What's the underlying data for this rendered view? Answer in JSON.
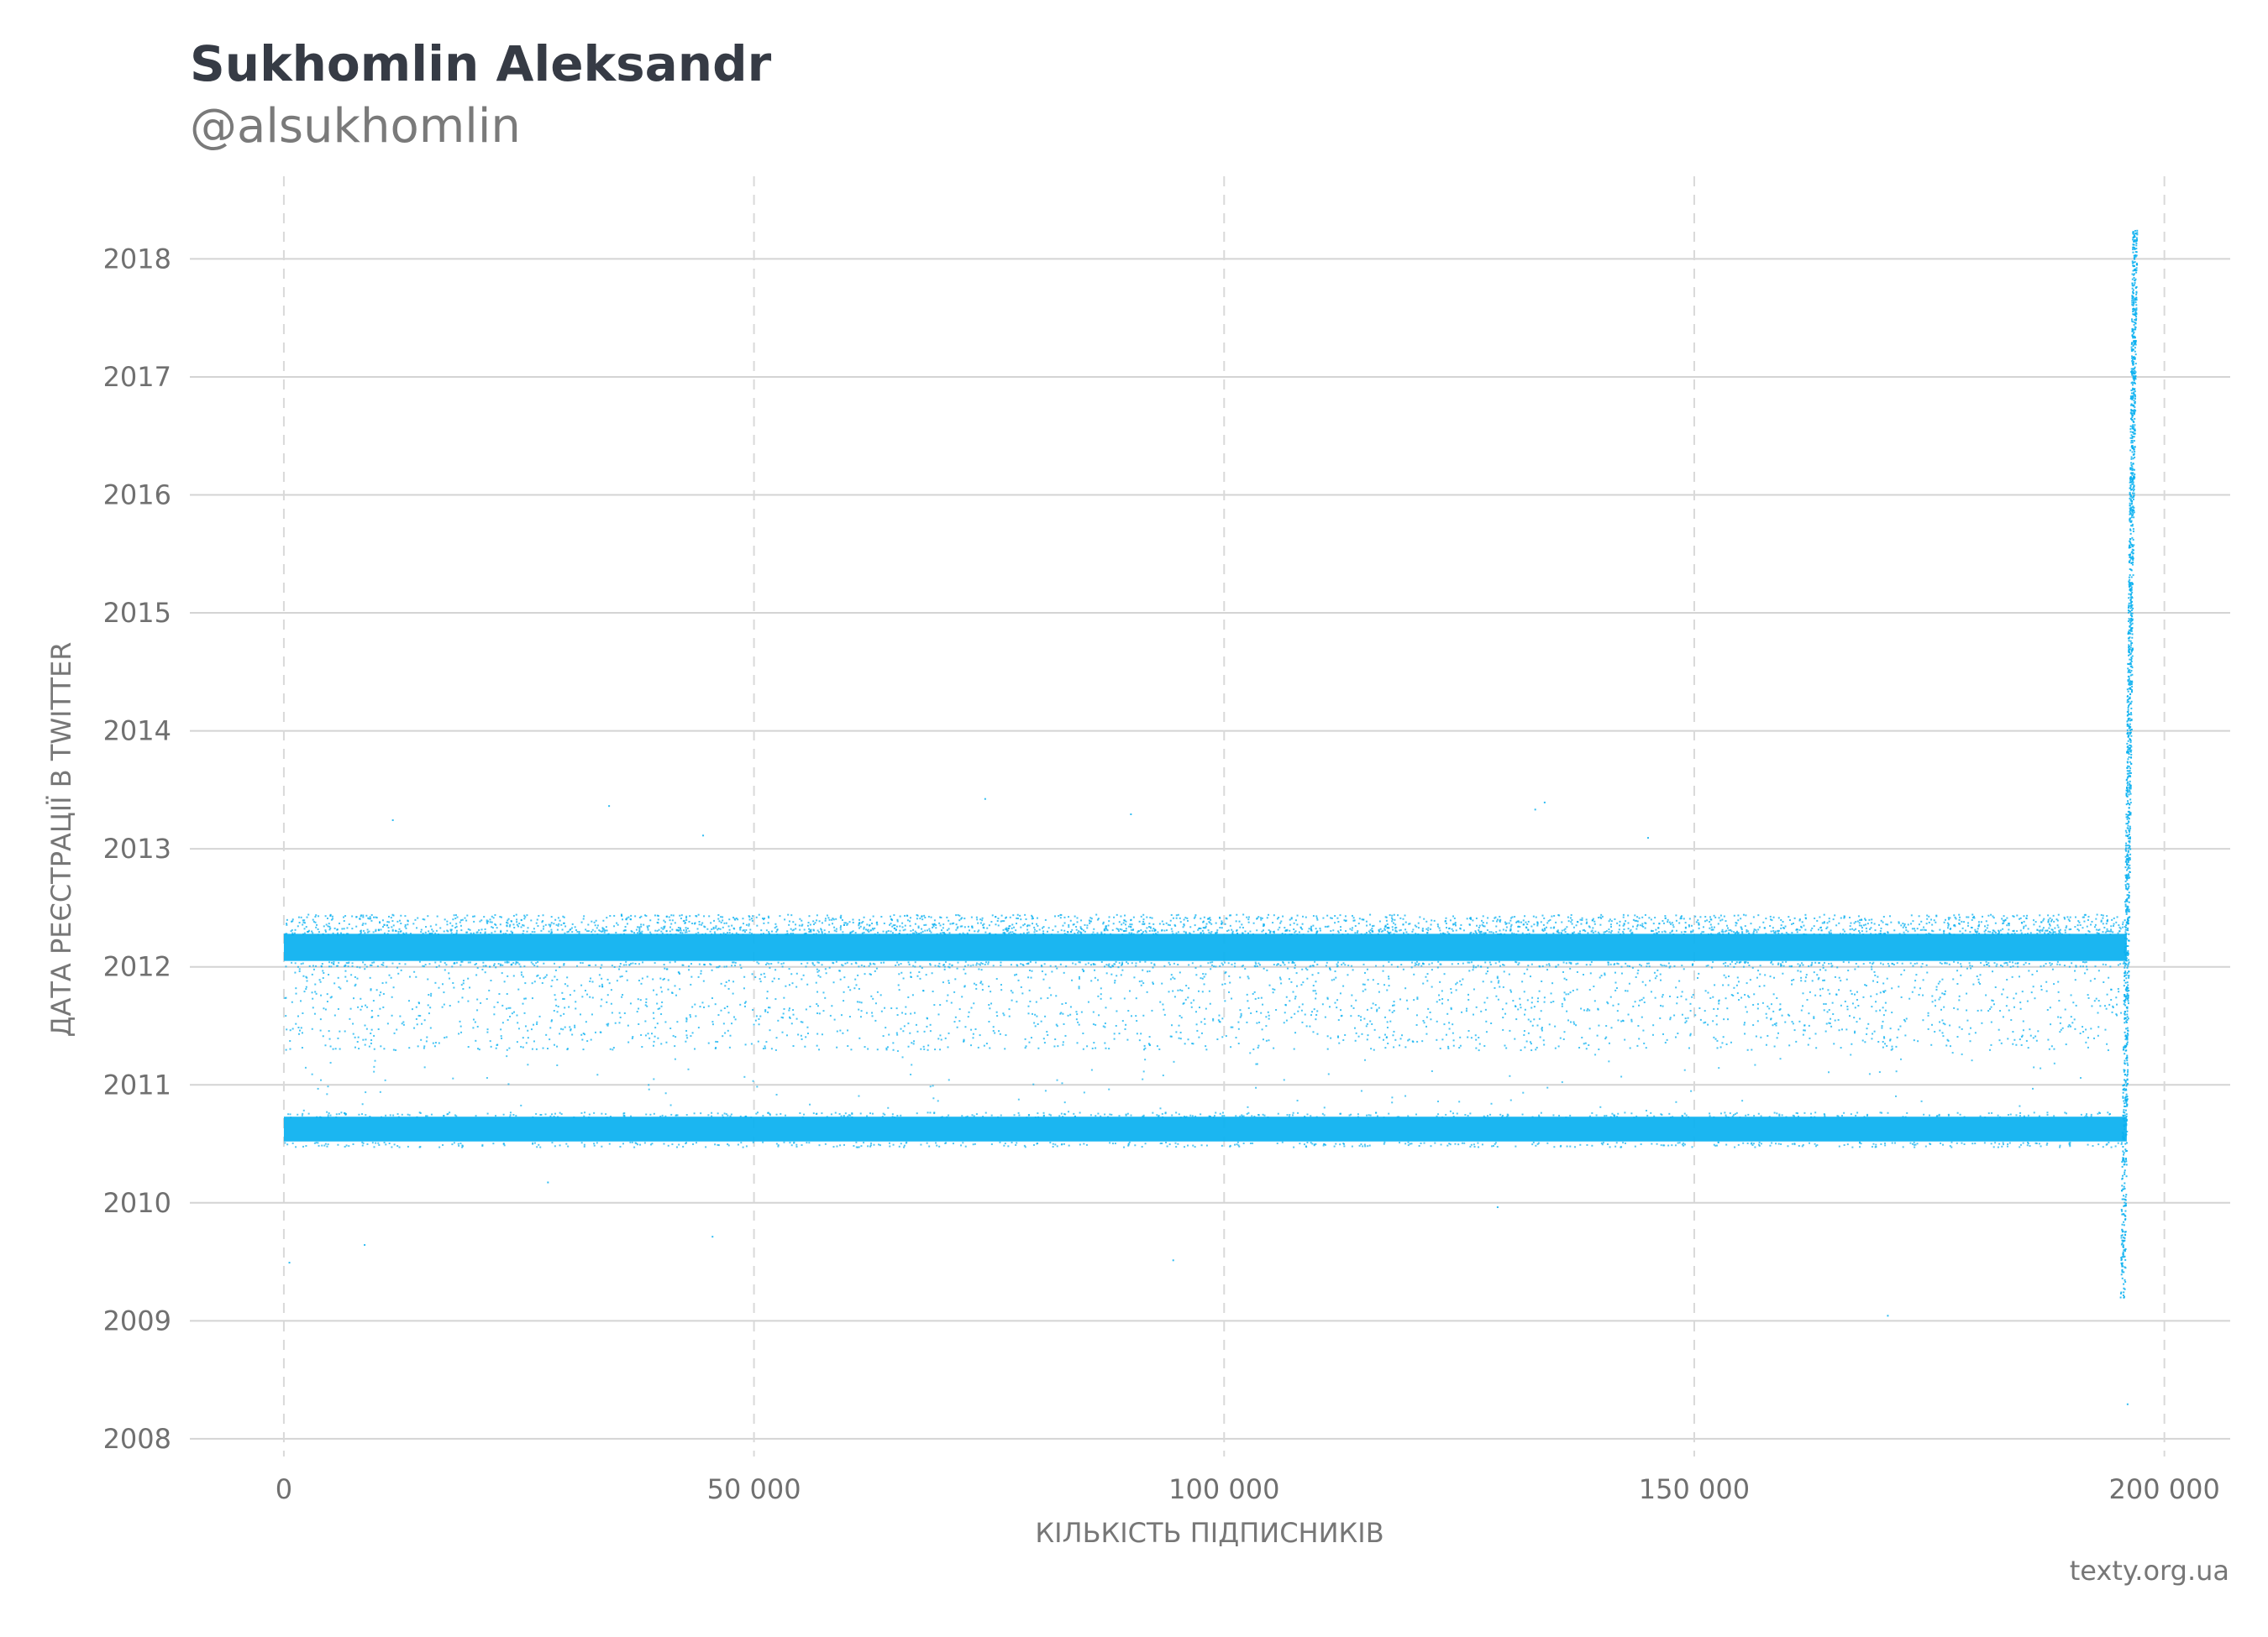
{
  "header": {
    "title": "Sukhomlin Aleksandr",
    "subtitle": "@alsukhomlin"
  },
  "footer": {
    "source": "texty.org.ua"
  },
  "chart_data": {
    "type": "scatter",
    "title": "Sukhomlin Aleksandr",
    "subtitle": "@alsukhomlin",
    "xlabel": "КІЛЬКІСТЬ ПІДПИСНИКІВ",
    "ylabel": "ДАТА РЕЄСТРАЦІЇ В TWITTER",
    "xlim": [
      -10000,
      207000
    ],
    "ylim": [
      2007.85,
      2018.7
    ],
    "x_ticks": [
      0,
      50000,
      100000,
      150000,
      200000
    ],
    "x_tick_labels": [
      "0",
      "50 000",
      "100 000",
      "150 000",
      "200 000"
    ],
    "y_ticks": [
      2008,
      2009,
      2010,
      2011,
      2012,
      2013,
      2014,
      2015,
      2016,
      2017,
      2018
    ],
    "y_tick_labels": [
      "2008",
      "2009",
      "2010",
      "2011",
      "2012",
      "2013",
      "2014",
      "2015",
      "2016",
      "2017",
      "2018"
    ],
    "grid": {
      "x": "dashed",
      "y": "solid"
    },
    "color": "#0ab0f0",
    "series": [
      {
        "dense_bands": [
          {
            "x": [
              0,
              196000
            ],
            "y": [
              2012.05,
              2012.28
            ]
          },
          {
            "x": [
              0,
              196000
            ],
            "y": [
              2010.52,
              2010.73
            ]
          }
        ],
        "sparse_region": {
          "x": [
            0,
            196000
          ],
          "y": [
            2011.3,
            2012.45
          ]
        },
        "tail": {
          "x": [
            195500,
            196800
          ],
          "y": [
            2009.2,
            2018.25
          ]
        },
        "outliers": [
          {
            "x": 500,
            "y": 2009.5
          },
          {
            "x": 8500,
            "y": 2009.65
          },
          {
            "x": 11500,
            "y": 2013.25
          },
          {
            "x": 28000,
            "y": 2010.18
          },
          {
            "x": 34500,
            "y": 2013.37
          },
          {
            "x": 44500,
            "y": 2013.12
          },
          {
            "x": 45500,
            "y": 2009.72
          },
          {
            "x": 74500,
            "y": 2013.43
          },
          {
            "x": 90000,
            "y": 2013.3
          },
          {
            "x": 94500,
            "y": 2009.52
          },
          {
            "x": 129000,
            "y": 2009.97
          },
          {
            "x": 133000,
            "y": 2013.34
          },
          {
            "x": 134000,
            "y": 2013.4
          },
          {
            "x": 145000,
            "y": 2013.1
          },
          {
            "x": 170500,
            "y": 2009.05
          },
          {
            "x": 196000,
            "y": 2008.3
          }
        ]
      }
    ]
  }
}
